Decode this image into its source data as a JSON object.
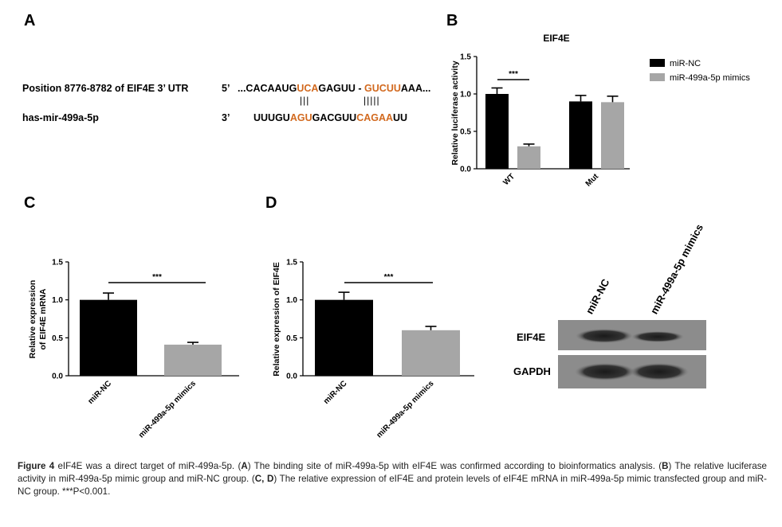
{
  "panels": {
    "a": "A",
    "b": "B",
    "c": "C",
    "d": "D"
  },
  "sequence": {
    "utr_label": "Position  8776-8782 of EIF4E 3’ UTR",
    "utr_end": "5’",
    "utr_seq": [
      "...CACAAUG",
      "UCA",
      "GAGUU - ",
      "GUCUU",
      "AAA..."
    ],
    "mir_label": "has-mir-499a-5p",
    "mir_end": "3’",
    "mir_seq": [
      "UUUGU",
      "AGU",
      "GACGUU",
      "CAGAA",
      "UU"
    ],
    "pairs_left": "|||",
    "pairs_right": "|||||"
  },
  "colors": {
    "nc": "#000000",
    "mimic": "#a6a6a6",
    "highlight": "#d2691e"
  },
  "chart_data": [
    {
      "id": "B",
      "type": "bar",
      "title": "EIF4E",
      "ylabel": "Relative luciferase activity",
      "ylim": [
        0,
        1.5
      ],
      "yticks": [
        "0.0",
        "0.5",
        "1.0",
        "1.5"
      ],
      "categories": [
        "WT",
        "Mut"
      ],
      "series": [
        {
          "name": "miR-NC",
          "values": [
            1.0,
            0.9
          ],
          "errors": [
            0.08,
            0.08
          ]
        },
        {
          "name": "miR-499a-5p mimics",
          "values": [
            0.3,
            0.89
          ],
          "errors": [
            0.03,
            0.08
          ]
        }
      ],
      "significance": "***",
      "legend": "right"
    },
    {
      "id": "C",
      "type": "bar",
      "ylabel": [
        "Relative expression",
        "of EIF4E mRNA"
      ],
      "ylim": [
        0,
        1.5
      ],
      "yticks": [
        "0.0",
        "0.5",
        "1.0",
        "1.5"
      ],
      "categories": [
        "miR-NC",
        "miR-499a-5p mimics"
      ],
      "values": [
        1.0,
        0.41
      ],
      "errors": [
        0.09,
        0.03
      ],
      "significance": "***"
    },
    {
      "id": "D",
      "type": "bar",
      "ylabel": "Relative expression of EIF4E",
      "ylim": [
        0,
        1.5
      ],
      "yticks": [
        "0.0",
        "0.5",
        "1.0",
        "1.5"
      ],
      "categories": [
        "miR-NC",
        "miR-499a-5p mimics"
      ],
      "values": [
        1.0,
        0.6
      ],
      "errors": [
        0.1,
        0.05
      ],
      "significance": "***"
    }
  ],
  "blot": {
    "lanes": [
      "miR-NC",
      "miR-499a-5p mimics"
    ],
    "rows": [
      "EIF4E",
      "GAPDH"
    ]
  },
  "caption": {
    "fig": "Figure 4",
    "parts": [
      " eIF4E was a direct target of miR-499a-5p. (",
      "A",
      ") The binding site of miR-499a-5p with eIF4E was confirmed according to bioinformatics analysis. (",
      "B",
      ") The relative luciferase activity in miR-499a-5p mimic group and miR-NC group. (",
      "C, D",
      ") The relative expression of eIF4E and protein levels of eIF4E mRNA in miR-499a-5p mimic transfected group and miR-NC group. ***P<0.001."
    ]
  }
}
